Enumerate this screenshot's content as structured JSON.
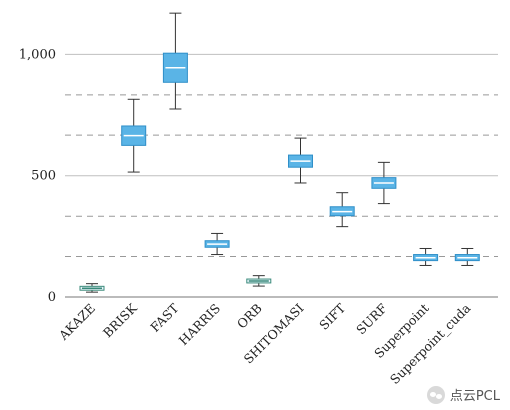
{
  "chart_data": {
    "type": "box",
    "title": "",
    "xlabel": "",
    "ylabel": "",
    "ylim": [
      0,
      1180
    ],
    "yticks": [
      0,
      500,
      1000
    ],
    "ytick_labels": [
      "0",
      "500",
      "1,000"
    ],
    "grid": {
      "solid": [
        500,
        1000
      ],
      "dashed": [
        167,
        333,
        667,
        833
      ]
    },
    "categories": [
      "AKAZE",
      "BRISK",
      "FAST",
      "HARRIS",
      "ORB",
      "SHITOMASI",
      "SIFT",
      "SURF",
      "Superpoint",
      "Superpoint_cuda"
    ],
    "boxes": [
      {
        "min": 20,
        "q1": 28,
        "median": 36,
        "q3": 44,
        "max": 55
      },
      {
        "min": 515,
        "q1": 625,
        "median": 665,
        "q3": 705,
        "max": 815
      },
      {
        "min": 775,
        "q1": 885,
        "median": 945,
        "q3": 1005,
        "max": 1170
      },
      {
        "min": 175,
        "q1": 205,
        "median": 218,
        "q3": 232,
        "max": 262
      },
      {
        "min": 45,
        "q1": 58,
        "median": 66,
        "q3": 74,
        "max": 88
      },
      {
        "min": 470,
        "q1": 535,
        "median": 560,
        "q3": 585,
        "max": 655
      },
      {
        "min": 290,
        "q1": 335,
        "median": 352,
        "q3": 372,
        "max": 430
      },
      {
        "min": 385,
        "q1": 448,
        "median": 470,
        "q3": 492,
        "max": 555
      },
      {
        "min": 130,
        "q1": 150,
        "median": 162,
        "q3": 175,
        "max": 200
      },
      {
        "min": 130,
        "q1": 150,
        "median": 162,
        "q3": 175,
        "max": 200
      }
    ],
    "colors": {
      "box_fill": "#5ab4e6",
      "box_edge": "#2f8fc8",
      "small_box_edge": "#3a8a7a",
      "whisker": "#333333",
      "grid_solid": "#bfbfbf",
      "grid_dashed": "#999999"
    }
  },
  "watermark": {
    "text": "点云PCL",
    "icon": "wechat-icon"
  }
}
